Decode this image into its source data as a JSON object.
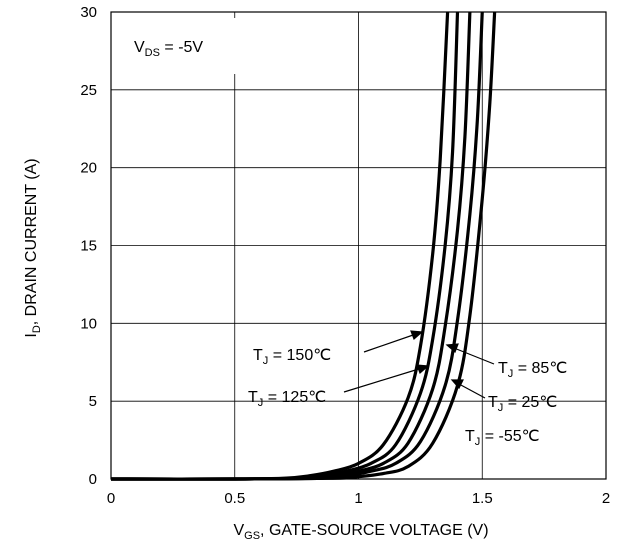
{
  "chart_data": {
    "type": "line",
    "xlabel": {
      "prefix": "V",
      "sub": "GS",
      "rest": ", GATE-SOURCE VOLTAGE (V)"
    },
    "ylabel": {
      "prefix": "I",
      "sub": "D",
      "rest": ", DRAIN CURRENT (A)"
    },
    "xlim": [
      0,
      2
    ],
    "ylim": [
      0,
      30
    ],
    "xticks": [
      0,
      0.5,
      1,
      1.5,
      2
    ],
    "xtick_labels": [
      "0",
      "0.5",
      "1",
      "1.5",
      "2"
    ],
    "yticks": [
      0,
      5,
      10,
      15,
      20,
      25,
      30
    ],
    "ytick_labels": [
      "0",
      "5",
      "10",
      "15",
      "20",
      "25",
      "30"
    ],
    "grid": true,
    "condition": {
      "prefix": "V",
      "sub": "DS",
      "rest": " = -5V"
    },
    "series": [
      {
        "name": "TJ = 150℃",
        "label": {
          "prefix": "T",
          "sub": "J",
          "rest": " = 150℃"
        },
        "x": [
          0,
          0.5,
          0.7,
          0.8,
          0.9,
          1.0,
          1.1,
          1.2,
          1.25,
          1.3,
          1.33,
          1.36
        ],
        "y": [
          0,
          0,
          0.05,
          0.2,
          0.5,
          1.0,
          2.2,
          5.2,
          8.5,
          14.5,
          20.5,
          30
        ]
      },
      {
        "name": "TJ = 125℃",
        "label": {
          "prefix": "T",
          "sub": "J",
          "rest": " = 125℃"
        },
        "x": [
          0,
          0.5,
          0.75,
          0.85,
          0.95,
          1.05,
          1.15,
          1.25,
          1.3,
          1.35,
          1.38,
          1.4
        ],
        "y": [
          0,
          0,
          0.05,
          0.2,
          0.5,
          1.0,
          2.2,
          5.5,
          9.0,
          15.0,
          21.0,
          30
        ]
      },
      {
        "name": "TJ = 85℃",
        "label": {
          "prefix": "T",
          "sub": "J",
          "rest": " = 85℃"
        },
        "x": [
          0,
          0.5,
          0.8,
          0.9,
          1.0,
          1.1,
          1.2,
          1.3,
          1.35,
          1.4,
          1.43,
          1.45
        ],
        "y": [
          0,
          0,
          0.05,
          0.2,
          0.5,
          1.0,
          2.3,
          5.8,
          9.8,
          16.0,
          22.0,
          30
        ]
      },
      {
        "name": "TJ = 25℃",
        "label": {
          "prefix": "T",
          "sub": "J",
          "rest": " = 25℃"
        },
        "x": [
          0,
          0.5,
          0.85,
          0.95,
          1.05,
          1.15,
          1.25,
          1.35,
          1.4,
          1.45,
          1.48,
          1.5
        ],
        "y": [
          0,
          0,
          0.05,
          0.2,
          0.5,
          1.0,
          2.4,
          6.0,
          10.2,
          17.0,
          23.0,
          30
        ]
      },
      {
        "name": "TJ = -55℃",
        "label": {
          "prefix": "T",
          "sub": "J",
          "rest": " = -55℃"
        },
        "x": [
          0,
          0.5,
          0.9,
          1.0,
          1.1,
          1.2,
          1.3,
          1.4,
          1.45,
          1.5,
          1.53,
          1.55
        ],
        "y": [
          0,
          0,
          0.05,
          0.15,
          0.35,
          0.8,
          2.3,
          6.0,
          10.5,
          18.0,
          24.0,
          30
        ]
      }
    ]
  }
}
